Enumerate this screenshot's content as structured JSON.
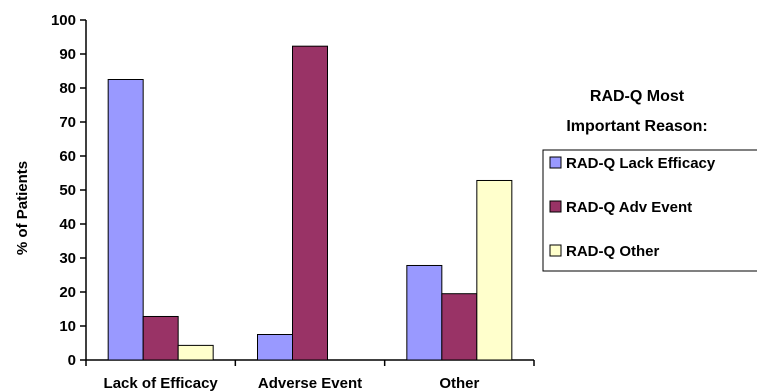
{
  "chart_data": {
    "type": "bar",
    "categories": [
      "Lack of Efficacy",
      "Adverse Event",
      "Other"
    ],
    "series": [
      {
        "name": "RAD-Q Lack Efficacy",
        "values": [
          82.5,
          7.5,
          27.8
        ],
        "color": "#9999ff"
      },
      {
        "name": "RAD-Q Adv Event",
        "values": [
          12.8,
          92.3,
          19.5
        ],
        "color": "#993366"
      },
      {
        "name": "RAD-Q Other",
        "values": [
          4.3,
          0,
          52.8
        ],
        "color": "#ffffcc"
      }
    ],
    "ylabel": "% of Patients",
    "ylim": [
      0,
      100
    ],
    "yticks": [
      "0",
      "10",
      "20",
      "30",
      "40",
      "50",
      "60",
      "70",
      "80",
      "90",
      "100"
    ],
    "legend_title": [
      "RAD-Q Most",
      "Important Reason:"
    ],
    "legend_position": "right",
    "grid": false
  }
}
